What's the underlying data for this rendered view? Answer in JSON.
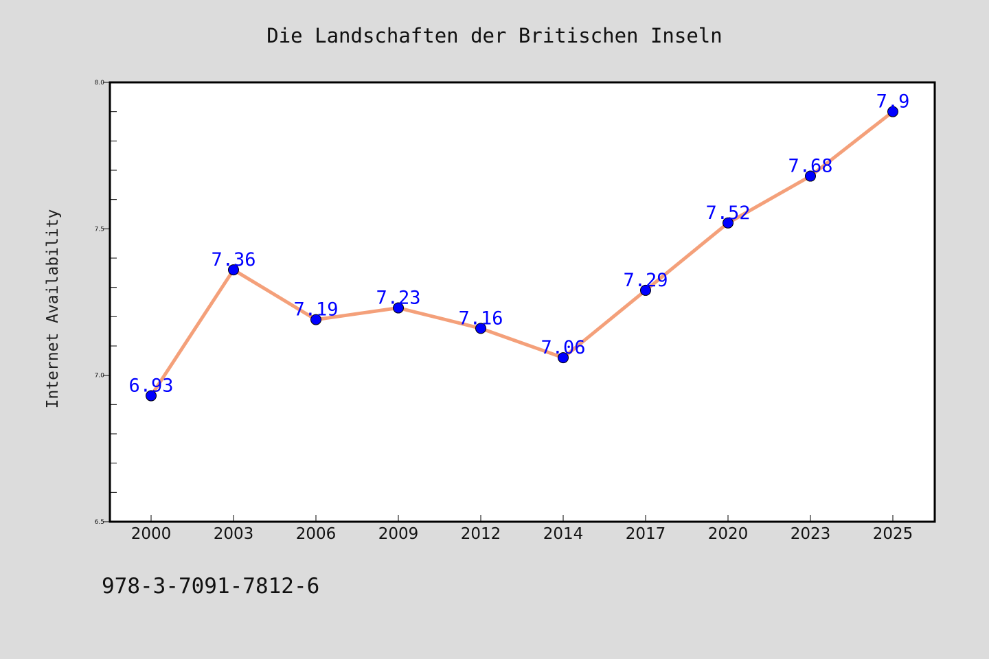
{
  "chart_data": {
    "type": "line",
    "title": "Die Landschaften der Britischen Inseln",
    "xlabel": "",
    "ylabel": "Internet Availability",
    "categories": [
      "2000",
      "2003",
      "2006",
      "2009",
      "2012",
      "2014",
      "2017",
      "2020",
      "2023",
      "2025"
    ],
    "series": [
      {
        "values": [
          6.93,
          7.36,
          7.19,
          7.23,
          7.16,
          7.06,
          7.29,
          7.52,
          7.68,
          7.9
        ]
      }
    ],
    "data_labels": [
      "6.93",
      "7.36",
      "7.19",
      "7.23",
      "7.16",
      "7.06",
      "7.29",
      "7.52",
      "7.68",
      "7.9"
    ],
    "ylim": [
      6.5,
      8.0
    ],
    "y_ticks": [
      "6.5",
      "7.0",
      "7.5",
      "8.0"
    ],
    "grid": false,
    "line_color": "#f4a07a",
    "marker_color": "#0000ff",
    "label_color": "#0000ff",
    "background_color": "#dcdcdc",
    "plot_background": "#ffffff"
  },
  "footer": {
    "isbn": "978-3-7091-7812-6"
  }
}
